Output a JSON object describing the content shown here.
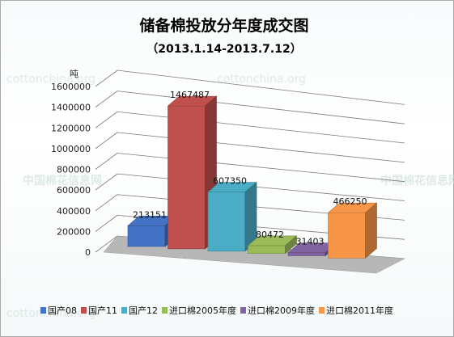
{
  "chart_data": {
    "type": "bar",
    "title": "储备棉投放分年度成交图",
    "subtitle": "（2013.1.14-2013.7.12）",
    "ylabel": "吨",
    "xlabel": "",
    "ylim": [
      0,
      1600000
    ],
    "yticks": [
      "0",
      "200000",
      "400000",
      "600000",
      "800000",
      "1000000",
      "1200000",
      "1400000",
      "1600000"
    ],
    "grid": true,
    "legend_position": "bottom",
    "categories": [
      "国产08",
      "国产11",
      "国产12",
      "进口棉2005年度",
      "进口棉2009年度",
      "进口棉2011年度"
    ],
    "series": [
      {
        "name": "国产08",
        "value": 213151,
        "label": "213151",
        "color": "#4472c4"
      },
      {
        "name": "国产11",
        "value": 1467487,
        "label": "1467487",
        "color": "#c0504d"
      },
      {
        "name": "国产12",
        "value": 607350,
        "label": "607350",
        "color": "#4bacc6"
      },
      {
        "name": "进口棉2005年度",
        "value": 80472,
        "label": "80472",
        "color": "#9bbb59"
      },
      {
        "name": "进口棉2009年度",
        "value": 31403,
        "label": "31403",
        "color": "#8064a2"
      },
      {
        "name": "进口棉2011年度",
        "value": 466250,
        "label": "466250",
        "color": "#f79646"
      }
    ],
    "watermark": [
      "cottonchina.org",
      "中国棉花信息网"
    ]
  }
}
